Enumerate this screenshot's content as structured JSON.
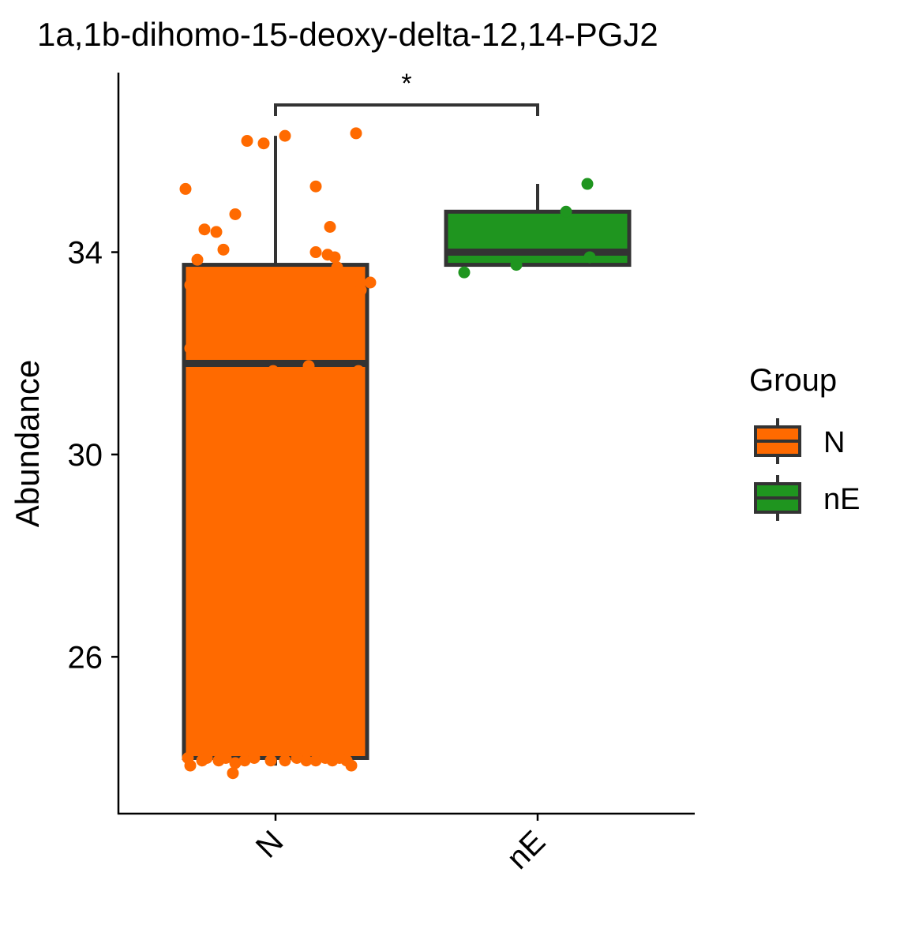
{
  "chart_data": {
    "type": "box",
    "title": "1a,1b-dihomo-15-deoxy-delta-12,14-PGJ2",
    "xlabel": "",
    "ylabel": "Abundance",
    "ylim": [
      22.9,
      37.55
    ],
    "yticks": [
      26,
      30,
      34
    ],
    "categories": [
      "N",
      "nE"
    ],
    "legend": {
      "title": "Group",
      "position": "right",
      "entries": [
        "N",
        "nE"
      ]
    },
    "colors": {
      "N": "#FF6A00",
      "nE": "#1F951F",
      "box_outline": "#333333"
    },
    "boxes": [
      {
        "group": "N",
        "whisker_low": 23.85,
        "q1": 24.0,
        "median": 31.8,
        "q3": 33.75,
        "whisker_high": 36.3
      },
      {
        "group": "nE",
        "whisker_low": 33.75,
        "q1": 33.75,
        "median": 34.0,
        "q3": 34.8,
        "whisker_high": 35.35
      }
    ],
    "points": [
      {
        "group": "N",
        "x": -0.38,
        "y": 35.25
      },
      {
        "group": "N",
        "x": -0.3,
        "y": 34.45
      },
      {
        "group": "N",
        "x": -0.25,
        "y": 34.4
      },
      {
        "group": "N",
        "x": -0.22,
        "y": 34.05
      },
      {
        "group": "N",
        "x": -0.17,
        "y": 34.75
      },
      {
        "group": "N",
        "x": -0.12,
        "y": 36.2
      },
      {
        "group": "N",
        "x": -0.05,
        "y": 36.15
      },
      {
        "group": "N",
        "x": 0.04,
        "y": 36.3
      },
      {
        "group": "N",
        "x": 0.34,
        "y": 36.35
      },
      {
        "group": "N",
        "x": 0.17,
        "y": 35.3
      },
      {
        "group": "N",
        "x": 0.23,
        "y": 34.5
      },
      {
        "group": "N",
        "x": 0.17,
        "y": 34.0
      },
      {
        "group": "N",
        "x": 0.22,
        "y": 33.95
      },
      {
        "group": "N",
        "x": 0.25,
        "y": 33.9
      },
      {
        "group": "N",
        "x": 0.26,
        "y": 33.7
      },
      {
        "group": "N",
        "x": -0.33,
        "y": 33.85
      },
      {
        "group": "N",
        "x": -0.36,
        "y": 33.35
      },
      {
        "group": "N",
        "x": 0.36,
        "y": 33.25
      },
      {
        "group": "N",
        "x": 0.4,
        "y": 33.4
      },
      {
        "group": "N",
        "x": -0.36,
        "y": 32.1
      },
      {
        "group": "N",
        "x": 0.14,
        "y": 31.75
      },
      {
        "group": "N",
        "x": -0.01,
        "y": 31.65
      },
      {
        "group": "N",
        "x": 0.35,
        "y": 31.65
      },
      {
        "group": "N",
        "x": -0.34,
        "y": 31.35
      },
      {
        "group": "N",
        "x": -0.37,
        "y": 24.0
      },
      {
        "group": "N",
        "x": -0.36,
        "y": 23.85
      },
      {
        "group": "N",
        "x": -0.31,
        "y": 23.95
      },
      {
        "group": "N",
        "x": -0.29,
        "y": 24.0
      },
      {
        "group": "N",
        "x": -0.24,
        "y": 23.95
      },
      {
        "group": "N",
        "x": -0.21,
        "y": 24.0
      },
      {
        "group": "N",
        "x": -0.17,
        "y": 23.9
      },
      {
        "group": "N",
        "x": -0.18,
        "y": 23.7
      },
      {
        "group": "N",
        "x": -0.13,
        "y": 23.95
      },
      {
        "group": "N",
        "x": -0.09,
        "y": 24.0
      },
      {
        "group": "N",
        "x": -0.02,
        "y": 23.95
      },
      {
        "group": "N",
        "x": 0.04,
        "y": 23.95
      },
      {
        "group": "N",
        "x": 0.09,
        "y": 24.0
      },
      {
        "group": "N",
        "x": 0.13,
        "y": 23.95
      },
      {
        "group": "N",
        "x": 0.17,
        "y": 23.95
      },
      {
        "group": "N",
        "x": 0.21,
        "y": 24.0
      },
      {
        "group": "N",
        "x": 0.24,
        "y": 23.95
      },
      {
        "group": "N",
        "x": 0.27,
        "y": 24.0
      },
      {
        "group": "N",
        "x": 0.3,
        "y": 23.95
      },
      {
        "group": "N",
        "x": 0.32,
        "y": 23.85
      },
      {
        "group": "nE",
        "x": -0.31,
        "y": 33.6
      },
      {
        "group": "nE",
        "x": -0.09,
        "y": 33.75
      },
      {
        "group": "nE",
        "x": 0.12,
        "y": 34.8
      },
      {
        "group": "nE",
        "x": 0.21,
        "y": 35.35
      },
      {
        "group": "nE",
        "x": 0.22,
        "y": 33.9
      }
    ],
    "significance": {
      "pair": [
        "N",
        "nE"
      ],
      "label": "*"
    }
  }
}
